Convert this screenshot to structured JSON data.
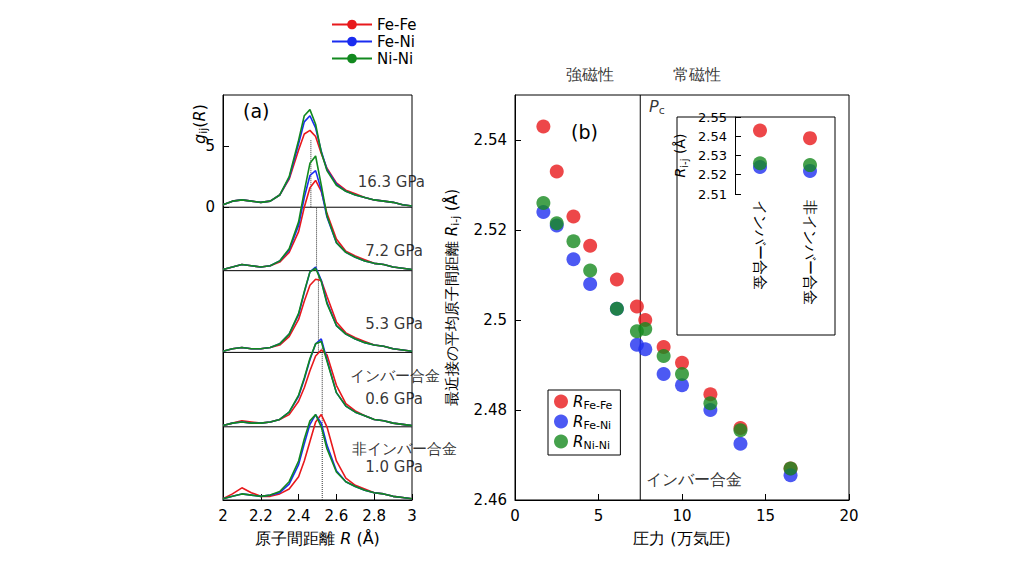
{
  "chart_data": [
    {
      "type": "line",
      "title": "(a)",
      "xlabel": [
        "原子間距離 ",
        {
          "italic": "R"
        },
        " (Å)"
      ],
      "ylabel": [
        {
          "italic": "g"
        },
        {
          "sub": "ij"
        },
        "(",
        {
          "italic": "R"
        },
        ")"
      ],
      "xlim": [
        2,
        3
      ],
      "ylim": [
        -24,
        9.2
      ],
      "xticks": [
        2,
        2.2,
        2.4,
        2.6,
        2.8,
        3
      ],
      "yticks": [
        0,
        5
      ],
      "grid": false,
      "legend": "top",
      "x": [
        2.0,
        2.05,
        2.1,
        2.15,
        2.2,
        2.25,
        2.3,
        2.35,
        2.4,
        2.43,
        2.46,
        2.49,
        2.52,
        2.55,
        2.6,
        2.65,
        2.7,
        2.75,
        2.8,
        2.85,
        2.9,
        2.95,
        3.0
      ],
      "series": [
        {
          "name": "Fe-Fe",
          "color": "#e8191c",
          "values": [
            0.2,
            0.5,
            0.6,
            0.5,
            0.4,
            0.5,
            1.0,
            2.3,
            4.7,
            6.0,
            6.3,
            5.8,
            4.4,
            3.2,
            2.0,
            1.4,
            1.1,
            0.8,
            0.6,
            0.5,
            0.4,
            0.2,
            0.1
          ]
        },
        {
          "name": "Fe-Ni",
          "color": "#1a2cf0",
          "values": [
            0.2,
            0.5,
            0.6,
            0.5,
            0.4,
            0.5,
            1.0,
            2.4,
            5.2,
            7.0,
            7.5,
            6.5,
            4.6,
            3.1,
            1.9,
            1.3,
            1.0,
            0.8,
            0.6,
            0.5,
            0.4,
            0.2,
            0.1
          ]
        },
        {
          "name": "Ni-Ni",
          "color": "#12891f",
          "values": [
            0.2,
            0.5,
            0.6,
            0.5,
            0.4,
            0.5,
            1.0,
            2.5,
            5.5,
            7.5,
            8.0,
            6.8,
            4.5,
            3.0,
            1.8,
            1.3,
            1.0,
            0.8,
            0.6,
            0.5,
            0.4,
            0.2,
            0.1
          ]
        },
        {
          "name": "Fe-Fe",
          "color": "#e8191c",
          "values": [
            -5.1,
            -4.9,
            -4.7,
            -4.8,
            -4.9,
            -4.8,
            -4.5,
            -3.7,
            -2.0,
            0.0,
            1.6,
            2.2,
            1.3,
            -0.5,
            -2.6,
            -3.6,
            -4.0,
            -4.3,
            -4.6,
            -4.7,
            -4.9,
            -5.0,
            -5.1
          ]
        },
        {
          "name": "Fe-Ni",
          "color": "#1a2cf0",
          "values": [
            -5.1,
            -4.9,
            -4.7,
            -4.8,
            -4.9,
            -4.8,
            -4.4,
            -3.5,
            -1.5,
            0.8,
            2.6,
            3.0,
            1.4,
            -0.8,
            -2.9,
            -3.7,
            -4.1,
            -4.4,
            -4.6,
            -4.7,
            -4.9,
            -5.0,
            -5.1
          ]
        },
        {
          "name": "Ni-Ni",
          "color": "#12891f",
          "values": [
            -5.1,
            -4.9,
            -4.7,
            -4.8,
            -4.9,
            -4.8,
            -4.4,
            -3.4,
            -1.2,
            1.3,
            3.6,
            4.2,
            1.8,
            -0.7,
            -2.9,
            -3.7,
            -4.1,
            -4.4,
            -4.6,
            -4.7,
            -4.9,
            -5.0,
            -5.1
          ]
        },
        {
          "name": "Fe-Fe",
          "color": "#e8191c",
          "values": [
            -11.8,
            -11.6,
            -11.5,
            -11.6,
            -11.6,
            -11.5,
            -11.3,
            -10.6,
            -9.2,
            -7.7,
            -6.4,
            -5.9,
            -6.0,
            -7.3,
            -9.4,
            -10.3,
            -10.7,
            -11.0,
            -11.3,
            -11.4,
            -11.6,
            -11.7,
            -11.8
          ]
        },
        {
          "name": "Fe-Ni",
          "color": "#1a2cf0",
          "values": [
            -11.8,
            -11.6,
            -11.5,
            -11.6,
            -11.6,
            -11.5,
            -11.2,
            -10.4,
            -8.8,
            -7.0,
            -5.3,
            -4.9,
            -6.0,
            -7.8,
            -9.7,
            -10.4,
            -10.8,
            -11.1,
            -11.3,
            -11.4,
            -11.6,
            -11.7,
            -11.8
          ]
        },
        {
          "name": "Ni-Ni",
          "color": "#12891f",
          "values": [
            -11.8,
            -11.6,
            -11.5,
            -11.6,
            -11.6,
            -11.5,
            -11.2,
            -10.4,
            -8.7,
            -6.9,
            -5.3,
            -5.0,
            -6.1,
            -7.9,
            -9.7,
            -10.4,
            -10.8,
            -11.1,
            -11.3,
            -11.4,
            -11.6,
            -11.7,
            -11.8
          ]
        },
        {
          "name": "Fe-Fe",
          "color": "#e8191c",
          "values": [
            -17.9,
            -17.7,
            -17.5,
            -17.6,
            -17.7,
            -17.6,
            -17.4,
            -17.0,
            -15.9,
            -14.8,
            -13.4,
            -12.2,
            -11.7,
            -12.1,
            -14.6,
            -16.1,
            -16.7,
            -17.1,
            -17.4,
            -17.5,
            -17.7,
            -17.8,
            -17.9
          ]
        },
        {
          "name": "Fe-Ni",
          "color": "#1a2cf0",
          "values": [
            -17.9,
            -17.7,
            -17.6,
            -17.7,
            -17.7,
            -17.6,
            -17.4,
            -16.8,
            -15.5,
            -14.1,
            -12.5,
            -11.2,
            -10.8,
            -12.5,
            -15.2,
            -16.3,
            -16.8,
            -17.1,
            -17.4,
            -17.5,
            -17.7,
            -17.8,
            -17.9
          ]
        },
        {
          "name": "Ni-Ni",
          "color": "#12891f",
          "values": [
            -17.9,
            -17.7,
            -17.6,
            -17.7,
            -17.7,
            -17.6,
            -17.4,
            -16.8,
            -15.4,
            -14.0,
            -12.4,
            -11.2,
            -11.0,
            -12.6,
            -15.2,
            -16.3,
            -16.8,
            -17.1,
            -17.4,
            -17.5,
            -17.7,
            -17.8,
            -17.9
          ]
        },
        {
          "name": "Fe-Fe",
          "color": "#e8191c",
          "values": [
            -23.9,
            -23.5,
            -23.0,
            -23.4,
            -23.7,
            -23.7,
            -23.5,
            -23.1,
            -22.1,
            -20.8,
            -19.2,
            -17.6,
            -17.0,
            -18.0,
            -20.8,
            -22.2,
            -22.8,
            -23.1,
            -23.4,
            -23.5,
            -23.7,
            -23.8,
            -23.9
          ]
        },
        {
          "name": "Fe-Ni",
          "color": "#1a2cf0",
          "values": [
            -23.9,
            -23.7,
            -23.5,
            -23.6,
            -23.7,
            -23.6,
            -23.4,
            -22.7,
            -21.1,
            -19.4,
            -17.8,
            -17.0,
            -17.7,
            -19.5,
            -21.6,
            -22.5,
            -22.9,
            -23.2,
            -23.4,
            -23.5,
            -23.7,
            -23.8,
            -23.9
          ]
        },
        {
          "name": "Ni-Ni",
          "color": "#12891f",
          "values": [
            -23.9,
            -23.7,
            -23.5,
            -23.6,
            -23.7,
            -23.6,
            -23.3,
            -22.5,
            -20.8,
            -19.0,
            -17.5,
            -17.0,
            -18.0,
            -19.8,
            -21.7,
            -22.5,
            -22.9,
            -23.2,
            -23.4,
            -23.5,
            -23.7,
            -23.8,
            -23.9
          ]
        }
      ],
      "baselines": [
        0,
        -5.2,
        -11.9,
        -18.0
      ],
      "peak_lines": [
        {
          "x": 2.465,
          "y": [
            0,
            5.5
          ]
        },
        {
          "x": 2.495,
          "y": [
            -5.2,
            0
          ]
        },
        {
          "x": 2.505,
          "y": [
            -11.9,
            -5.5
          ]
        },
        {
          "x": 2.525,
          "y": [
            -18.0,
            -11.5
          ]
        },
        {
          "x": 2.525,
          "y": [
            -24,
            -18.0
          ]
        }
      ],
      "annotations": [
        {
          "text": "16.3 GPa",
          "x": 2.71,
          "y": 2.1
        },
        {
          "text": "7.2 GPa",
          "x": 2.75,
          "y": -3.6
        },
        {
          "text": "5.3 GPa",
          "x": 2.75,
          "y": -9.6
        },
        {
          "text": "インバー合金",
          "x": 2.67,
          "y": -13.8
        },
        {
          "text": "0.6 GPa",
          "x": 2.75,
          "y": -15.7
        },
        {
          "text": "非インバー合金",
          "x": 2.68,
          "y": -19.8
        },
        {
          "text": "1.0 GPa",
          "x": 2.75,
          "y": -21.3
        }
      ]
    },
    {
      "type": "scatter",
      "title": "(b)",
      "xlabel": "圧力 (万気圧)",
      "ylabel": [
        "最近接の平均原子間距離 ",
        {
          "italic": "R"
        },
        {
          "sub": "i-j"
        },
        " (Å)"
      ],
      "xlim": [
        0,
        20
      ],
      "ylim": [
        2.46,
        2.55
      ],
      "xticks": [
        0,
        5,
        10,
        15,
        20
      ],
      "yticks": [
        2.46,
        2.48,
        2.5,
        2.52,
        2.54
      ],
      "grid": false,
      "legend": "lower left",
      "marker": "circle",
      "x": [
        1.7,
        2.5,
        3.5,
        4.5,
        6.1,
        7.3,
        7.8,
        8.9,
        10.0,
        11.7,
        13.5,
        16.5
      ],
      "series": [
        {
          "name": [
            {
              "italic": "R"
            },
            {
              "sub": "Fe-Fe"
            }
          ],
          "color": "#e8191c",
          "values": [
            2.543,
            2.533,
            2.523,
            2.5165,
            2.509,
            2.503,
            2.5,
            2.494,
            2.4905,
            2.4835,
            2.476,
            2.467
          ]
        },
        {
          "name": [
            {
              "italic": "R"
            },
            {
              "sub": "Fe-Ni"
            }
          ],
          "color": "#1f2ff0",
          "values": [
            2.524,
            2.521,
            2.5135,
            2.508,
            2.5025,
            2.4945,
            2.4935,
            2.488,
            2.4855,
            2.48,
            2.4725,
            2.4655
          ]
        },
        {
          "name": [
            {
              "italic": "R"
            },
            {
              "sub": "Ni-Ni"
            }
          ],
          "color": "#17891f",
          "values": [
            2.526,
            2.5215,
            2.5175,
            2.511,
            2.5025,
            2.4975,
            2.498,
            2.492,
            2.488,
            2.4815,
            2.4755,
            2.467
          ]
        }
      ],
      "reference_lines": [
        {
          "x": 7.5
        }
      ],
      "annotations": [
        {
          "text": "強磁性",
          "x": 3.05,
          "y": 2.5545
        },
        {
          "text": "常磁性",
          "x": 9.45,
          "y": 2.5545
        },
        {
          "text": [
            {
              "italic": "P"
            },
            {
              "sub": "c"
            }
          ],
          "x": 8.0,
          "y": 2.5475
        },
        {
          "text": "インバー合金",
          "x": 7.8,
          "y": 2.4645
        }
      ]
    },
    {
      "type": "scatter",
      "categories": [
        "インバー合金",
        "非インバー合金"
      ],
      "ylabel": [
        {
          "italic": "R"
        },
        {
          "sub": "i-j"
        },
        " (Å)"
      ],
      "ylim": [
        2.51,
        2.55
      ],
      "yticks": [
        2.51,
        2.52,
        2.53,
        2.54,
        2.55
      ],
      "grid": false,
      "marker": "circle",
      "series": [
        {
          "name": [
            {
              "italic": "R"
            },
            {
              "sub": "Fe-Fe"
            }
          ],
          "color": "#e8191c",
          "values": [
            2.543,
            2.539
          ]
        },
        {
          "name": [
            {
              "italic": "R"
            },
            {
              "sub": "Fe-Ni"
            }
          ],
          "color": "#1f2ff0",
          "values": [
            2.524,
            2.522
          ]
        },
        {
          "name": [
            {
              "italic": "R"
            },
            {
              "sub": "Ni-Ni"
            }
          ],
          "color": "#17891f",
          "values": [
            2.526,
            2.525
          ]
        }
      ]
    }
  ]
}
